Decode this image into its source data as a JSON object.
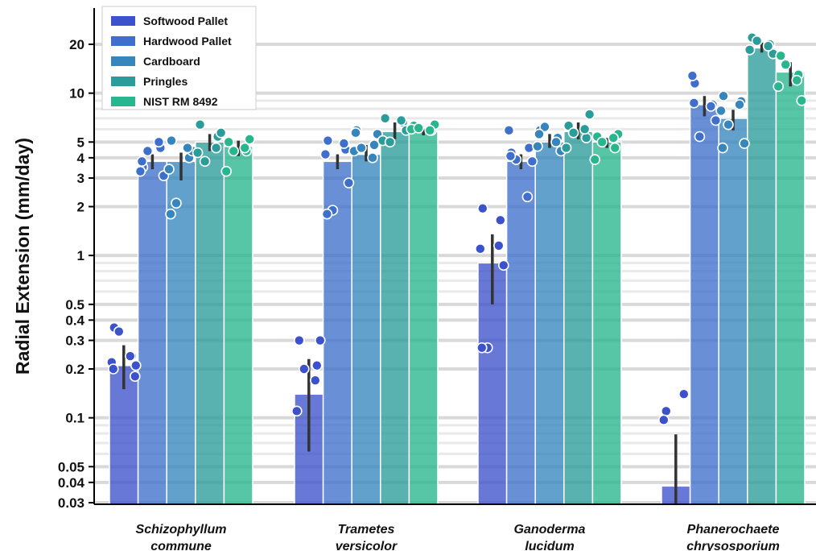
{
  "chart_data": {
    "type": "bar",
    "title": "",
    "xlabel": "",
    "ylabel": "Radial Extension (mm/day)",
    "yscale": "log",
    "ylim": [
      0.028,
      28
    ],
    "yticks": [
      0.03,
      0.04,
      0.05,
      0.1,
      0.2,
      0.3,
      0.4,
      0.5,
      1,
      2,
      3,
      4,
      5,
      10,
      20
    ],
    "ytick_labels": [
      "0.03",
      "0.04",
      "0.05",
      "0.1",
      "0.2",
      "0.3",
      "0.4",
      "0.5",
      "1",
      "2",
      "3",
      "4",
      "5",
      "10",
      "20"
    ],
    "grid": "horizontal",
    "legend_position": "top-left",
    "categories": [
      [
        "Schizophyllum",
        "commune"
      ],
      [
        "Trametes",
        "versicolor"
      ],
      [
        "Ganoderma",
        "lucidum"
      ],
      [
        "Phanerochaete",
        "chrysosporium"
      ]
    ],
    "series": [
      {
        "name": "Softwood Pallet",
        "color": "#3c52cc",
        "values": [
          0.21,
          0.14,
          0.9,
          0.038
        ],
        "error_low": [
          0.15,
          0.062,
          0.5,
          0.0
        ],
        "error_high": [
          0.28,
          0.23,
          1.35,
          0.079
        ],
        "points": [
          [
            0.36,
            0.24,
            0.22,
            0.18,
            0.34,
            0.24,
            0.2,
            0.21
          ],
          [
            0.3,
            0.21,
            0.11,
            0.3,
            0.2,
            0.17
          ],
          [
            1.95,
            1.65,
            1.1,
            0.87,
            0.27,
            1.15,
            0.27
          ],
          [
            0.11,
            0.14,
            0.097
          ]
        ]
      },
      {
        "name": "Hardwood Pallet",
        "color": "#3f6fcc",
        "values": [
          3.8,
          3.8,
          3.8,
          8.5
        ],
        "error_low": [
          3.4,
          3.4,
          3.4,
          7.2
        ],
        "error_high": [
          4.2,
          4.2,
          4.2,
          9.6
        ],
        "points": [
          [
            3.5,
            4.6,
            3.3,
            3.1,
            4.4,
            5.0,
            3.8
          ],
          [
            5.1,
            4.5,
            4.2,
            2.8,
            1.9,
            4.9,
            1.8
          ],
          [
            4.3,
            4.6,
            5.9,
            3.8,
            3.9,
            2.3,
            4.1
          ],
          [
            11.5,
            8.5,
            12.8,
            6.8,
            5.4,
            8.3,
            8.7
          ]
        ]
      },
      {
        "name": "Cardboard",
        "color": "#3686bd",
        "values": [
          3.8,
          4.2,
          5.0,
          7.0
        ],
        "error_low": [
          2.9,
          3.8,
          4.6,
          5.9
        ],
        "error_high": [
          4.3,
          4.8,
          5.6,
          7.9
        ],
        "points": [
          [
            5.1,
            4.0,
            3.4,
            4.4,
            2.1,
            4.6,
            1.8
          ],
          [
            5.9,
            4.8,
            4.4,
            5.6,
            4.6,
            4.0,
            5.7
          ],
          [
            5.9,
            5.3,
            4.7,
            4.4,
            6.2,
            5.0,
            5.6
          ],
          [
            9.6,
            8.9,
            7.8,
            4.9,
            6.4,
            8.5,
            4.6
          ]
        ]
      },
      {
        "name": "Pringles",
        "color": "#2a9c9a",
        "values": [
          5.0,
          5.8,
          5.8,
          19.0
        ],
        "error_low": [
          4.4,
          5.2,
          5.2,
          17.8
        ],
        "error_high": [
          5.6,
          6.6,
          6.6,
          20.5
        ],
        "points": [
          [
            6.4,
            5.4,
            4.3,
            5.7,
            3.8,
            4.6
          ],
          [
            7.0,
            6.6,
            5.1,
            5.9,
            5.0,
            6.8
          ],
          [
            6.3,
            5.3,
            4.6,
            7.4,
            5.7,
            6.0
          ],
          [
            22.0,
            20.0,
            18.5,
            17.5,
            21.0,
            19.5
          ]
        ]
      },
      {
        "name": "NIST RM 8492",
        "color": "#28b68e",
        "values": [
          4.7,
          5.8,
          5.0,
          13.5
        ],
        "error_low": [
          4.1,
          5.5,
          4.6,
          11.0
        ],
        "error_high": [
          5.1,
          6.0,
          5.3,
          15.5
        ],
        "points": [
          [
            5.0,
            4.4,
            3.3,
            5.2,
            4.4,
            4.6
          ],
          [
            6.3,
            5.9,
            6.0,
            6.4,
            6.1,
            5.9
          ],
          [
            5.4,
            4.6,
            3.9,
            5.6,
            5.0,
            5.3
          ],
          [
            17.0,
            13.0,
            11.0,
            9.0,
            15.0,
            12.0
          ]
        ]
      }
    ]
  }
}
